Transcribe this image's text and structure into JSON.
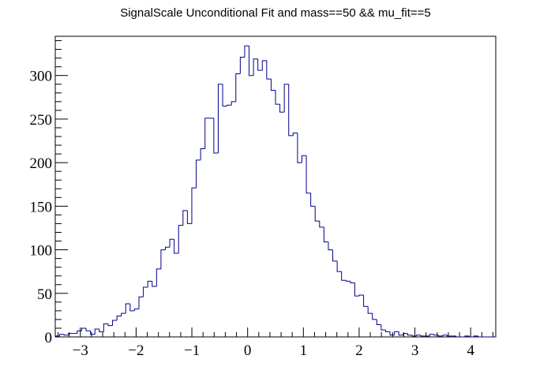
{
  "chart_data": {
    "type": "bar",
    "title": "SignalScale Unconditional Fit and mass==50 && mu_fit==5",
    "xlabel": "",
    "ylabel": "",
    "xlim": [
      -3.45,
      4.45
    ],
    "ylim": [
      0,
      345
    ],
    "bin_width": 0.079,
    "x_ticks": [
      -3,
      -2,
      -1,
      0,
      1,
      2,
      3,
      4
    ],
    "x_tick_labels": [
      "−3",
      "−2",
      "−1",
      "0",
      "1",
      "2",
      "3",
      "4"
    ],
    "y_ticks": [
      0,
      50,
      100,
      150,
      200,
      250,
      300
    ],
    "y_tick_labels": [
      "0",
      "50",
      "100",
      "150",
      "200",
      "250",
      "300"
    ],
    "series": [
      {
        "values": [
          1,
          3,
          2,
          4,
          4,
          7,
          10,
          7,
          3,
          9,
          6,
          15,
          13,
          19,
          24,
          27,
          38,
          30,
          32,
          46,
          57,
          64,
          58,
          78,
          100,
          103,
          112,
          96,
          128,
          145,
          130,
          171,
          203,
          216,
          251,
          251,
          211,
          290,
          265,
          266,
          270,
          302,
          321,
          334,
          300,
          319,
          306,
          317,
          296,
          283,
          267,
          258,
          290,
          231,
          234,
          200,
          208,
          165,
          150,
          133,
          126,
          109,
          100,
          87,
          75,
          65,
          64,
          62,
          47,
          48,
          35,
          27,
          20,
          14,
          8,
          6,
          2,
          6,
          2,
          4,
          2,
          1,
          2,
          1,
          1,
          3,
          2,
          1,
          2,
          1,
          1,
          0,
          0,
          1,
          0,
          1,
          0,
          0,
          0,
          0
        ]
      }
    ],
    "line_color": "#00008b",
    "grid": false
  }
}
